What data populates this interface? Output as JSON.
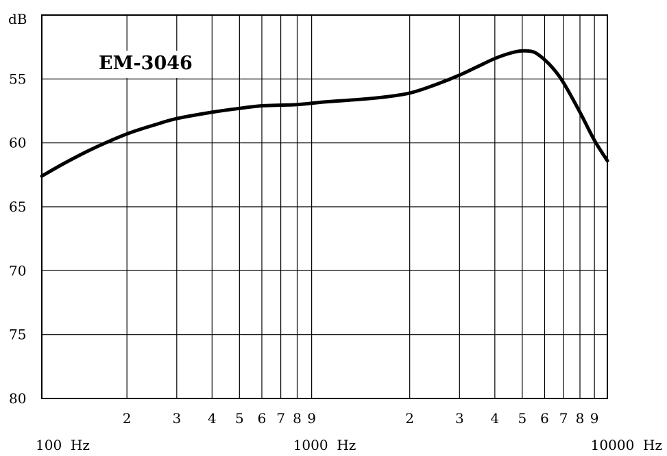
{
  "chart_data": {
    "type": "line",
    "title": "EM-3046",
    "ylabel": "dB",
    "xlabel": "",
    "x_scale": "log",
    "xlim": [
      100,
      10000
    ],
    "ylim": [
      80,
      50
    ],
    "y_inverted": true,
    "grid": true,
    "y_ticks": [
      55,
      60,
      65,
      70,
      75,
      80
    ],
    "x_decade_labels": [
      {
        "value": 100,
        "label": "100  Hz"
      },
      {
        "value": 1000,
        "label": "1000  Hz"
      },
      {
        "value": 10000,
        "label": "10000  Hz"
      }
    ],
    "x_minor_labels": [
      {
        "value": 200,
        "label": "2"
      },
      {
        "value": 300,
        "label": "3"
      },
      {
        "value": 400,
        "label": "4"
      },
      {
        "value": 500,
        "label": "5"
      },
      {
        "value": 600,
        "label": "6"
      },
      {
        "value": 700,
        "label": "7"
      },
      {
        "value": 800,
        "label": "8"
      },
      {
        "value": 900,
        "label": "9"
      },
      {
        "value": 2000,
        "label": "2"
      },
      {
        "value": 3000,
        "label": "3"
      },
      {
        "value": 4000,
        "label": "4"
      },
      {
        "value": 5000,
        "label": "5"
      },
      {
        "value": 6000,
        "label": "6"
      },
      {
        "value": 7000,
        "label": "7"
      },
      {
        "value": 8000,
        "label": "8"
      },
      {
        "value": 9000,
        "label": "9"
      }
    ],
    "series": [
      {
        "color": "#000000",
        "x": [
          100,
          120,
          150,
          200,
          250,
          300,
          400,
          500,
          600,
          800,
          1000,
          1500,
          2000,
          2500,
          3000,
          3500,
          4000,
          4500,
          5000,
          5500,
          6000,
          6500,
          7000,
          8000,
          9000,
          10000
        ],
        "y": [
          62.6,
          61.6,
          60.5,
          59.3,
          58.6,
          58.1,
          57.6,
          57.3,
          57.1,
          57.0,
          56.8,
          56.5,
          56.1,
          55.4,
          54.7,
          54.0,
          53.4,
          53.0,
          52.8,
          52.9,
          53.5,
          54.3,
          55.3,
          57.6,
          59.8,
          61.4
        ]
      }
    ]
  }
}
